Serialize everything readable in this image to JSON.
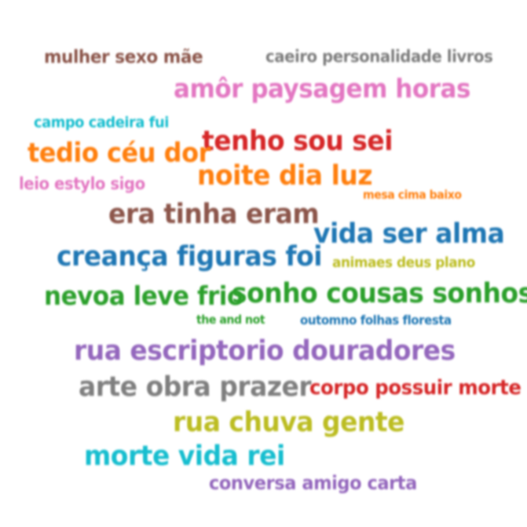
{
  "colors": {
    "brown": "#8c564b",
    "gray": "#7f7f7f",
    "pink": "#e377c2",
    "cyan": "#17becf",
    "orange": "#ff7f0e",
    "red": "#d62728",
    "blue": "#1f77b4",
    "olive": "#bcbd22",
    "green": "#2ca02c",
    "purple": "#9467bd"
  },
  "topics": [
    {
      "text": "mulher sexo mãe",
      "color": "brown"
    },
    {
      "text": "caeiro personalidade livros",
      "color": "gray"
    },
    {
      "text": "amôr paysagem horas",
      "color": "pink"
    },
    {
      "text": "campo cadeira fui",
      "color": "cyan"
    },
    {
      "text": "tenho sou sei",
      "color": "red"
    },
    {
      "text": "tedio céu dor",
      "color": "orange"
    },
    {
      "text": "noite dia luz",
      "color": "orange"
    },
    {
      "text": "leio estylo sigo",
      "color": "pink"
    },
    {
      "text": "mesa cima baixo",
      "color": "orange"
    },
    {
      "text": "era tinha eram",
      "color": "brown"
    },
    {
      "text": "vida ser alma",
      "color": "blue"
    },
    {
      "text": "creança figuras foi",
      "color": "blue"
    },
    {
      "text": "animaes deus plano",
      "color": "olive"
    },
    {
      "text": "nevoa leve frio",
      "color": "green"
    },
    {
      "text": "sonho cousas sonhos",
      "color": "green"
    },
    {
      "text": "the and not",
      "color": "green"
    },
    {
      "text": "outomno folhas floresta",
      "color": "blue"
    },
    {
      "text": "rua escriptorio douradores",
      "color": "purple"
    },
    {
      "text": "arte obra prazer",
      "color": "gray"
    },
    {
      "text": "corpo possuir morte",
      "color": "red"
    },
    {
      "text": "rua chuva gente",
      "color": "olive"
    },
    {
      "text": "morte vida rei",
      "color": "cyan"
    },
    {
      "text": "conversa amigo carta",
      "color": "purple"
    }
  ]
}
